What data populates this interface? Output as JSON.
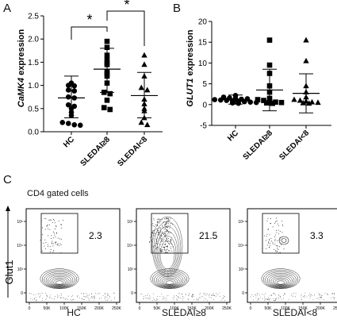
{
  "panels": {
    "a": {
      "letter": "A",
      "ylabel_gene": "CaMK4",
      "ylabel_suffix": " expression",
      "yticks": [
        "0.0",
        "0.5",
        "1.0",
        "1.5",
        "2.0",
        "2.5"
      ],
      "groups": [
        "HC",
        "SLEDAI≥8",
        "SLEDAI<8"
      ],
      "sig": [
        "*",
        "*"
      ]
    },
    "b": {
      "letter": "B",
      "ylabel_gene": "GLUT1",
      "ylabel_suffix": " expression",
      "yticks": [
        "-5",
        "0",
        "5",
        "10",
        "15",
        "20"
      ],
      "groups": [
        "HC",
        "SLEDAI≥8",
        "SLEDAI<8"
      ]
    },
    "c": {
      "letter": "C",
      "subtitle": "CD4 gated cells",
      "ylabel": "Glut1",
      "plots": [
        {
          "name": "HC",
          "gate_pct": "2.3"
        },
        {
          "name": "SLEDAI≥8",
          "gate_pct": "21.5"
        },
        {
          "name": "SLEDAI<8",
          "gate_pct": "3.3"
        }
      ],
      "yticks": [
        "0",
        "10³",
        "10⁴",
        "10⁵"
      ],
      "xticks": [
        "0",
        "50K",
        "100K",
        "150K",
        "200K",
        "250K"
      ]
    }
  },
  "chart_data": [
    {
      "type": "scatter",
      "title": "",
      "ylabel": "CaMK4 expression",
      "ylim": [
        0,
        2.5
      ],
      "categories": [
        "HC",
        "SLEDAI≥8",
        "SLEDAI<8"
      ],
      "series": [
        {
          "name": "HC",
          "marker": "circle",
          "mean": 0.73,
          "sd_low": 0.3,
          "sd_high": 1.2,
          "values": [
            1.05,
            1.0,
            0.99,
            0.9,
            0.88,
            0.75,
            0.73,
            0.58,
            0.5,
            0.42,
            0.35,
            0.2,
            0.18,
            0.15,
            0.14,
            0.55
          ]
        },
        {
          "name": "SLEDAI≥8",
          "marker": "square",
          "mean": 1.35,
          "sd_low": 0.85,
          "sd_high": 1.8,
          "values": [
            1.95,
            1.82,
            1.65,
            1.55,
            1.48,
            1.45,
            1.3,
            1.25,
            1.2,
            1.05,
            0.85,
            0.82,
            0.68,
            0.52,
            0.48
          ]
        },
        {
          "name": "SLEDAI<8",
          "marker": "triangle",
          "mean": 0.78,
          "sd_low": 0.3,
          "sd_high": 1.28,
          "values": [
            1.65,
            1.45,
            1.2,
            0.95,
            0.9,
            0.7,
            0.6,
            0.5,
            0.45,
            0.3,
            0.2,
            0.15
          ]
        }
      ],
      "significance": [
        [
          "HC",
          "SLEDAI≥8",
          "*"
        ],
        [
          "SLEDAI≥8",
          "SLEDAI<8",
          "*"
        ]
      ]
    },
    {
      "type": "scatter",
      "title": "",
      "ylabel": "GLUT1 expression",
      "ylim": [
        -5,
        20
      ],
      "categories": [
        "HC",
        "SLEDAI≥8",
        "SLEDAI<8"
      ],
      "series": [
        {
          "name": "HC",
          "marker": "circle",
          "mean": 1.2,
          "sd_low": 0.1,
          "sd_high": 2.3,
          "values": [
            2.2,
            1.8,
            1.6,
            1.5,
            1.3,
            1.2,
            1.1,
            1.0,
            0.9,
            0.8,
            0.7,
            0.6,
            0.5,
            0.4,
            0.3,
            1.4
          ]
        },
        {
          "name": "SLEDAI≥8",
          "marker": "square",
          "mean": 3.5,
          "sd_low": -1.5,
          "sd_high": 8.5,
          "values": [
            15.5,
            9.5,
            7.5,
            4.5,
            3.0,
            1.5,
            1.2,
            1.0,
            0.8,
            0.6,
            0.5,
            0.4,
            0.3
          ]
        },
        {
          "name": "SLEDAI<8",
          "marker": "triangle",
          "mean": 2.7,
          "sd_low": -2.0,
          "sd_high": 7.4,
          "values": [
            15.5,
            10.5,
            4.5,
            3.0,
            1.8,
            1.2,
            1.0,
            0.8,
            0.6,
            0.5,
            0.4,
            0.3
          ]
        }
      ]
    }
  ]
}
